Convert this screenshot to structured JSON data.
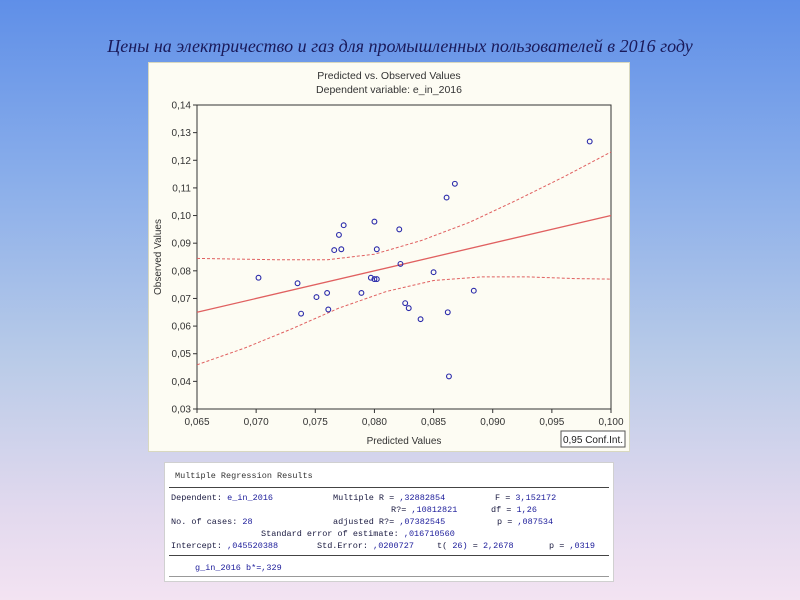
{
  "slide": {
    "title": "Цены на электричество и газ для промышленных пользователей в 2016 году"
  },
  "colors": {
    "regression_line": "#e06060",
    "points": "#2a2aaa",
    "panel_bg": "#fdfcf3"
  },
  "chart_data": {
    "type": "scatter",
    "title": "Predicted vs. Observed Values",
    "subtitle": "Dependent variable: e_in_2016",
    "xlabel": "Predicted Values",
    "ylabel": "Observed Values",
    "xlim": [
      0.065,
      0.1
    ],
    "ylim": [
      0.03,
      0.14
    ],
    "xticks": [
      "0,065",
      "0,070",
      "0,075",
      "0,080",
      "0,085",
      "0,090",
      "0,095",
      "0,100"
    ],
    "yticks": [
      "0,03",
      "0,04",
      "0,05",
      "0,06",
      "0,07",
      "0,08",
      "0,09",
      "0,10",
      "0,11",
      "0,12",
      "0,13",
      "0,14"
    ],
    "grid": false,
    "legend": "bottom-right",
    "legend_text": "0,95 Conf.Int.",
    "points": [
      {
        "x": 0.0702,
        "y": 0.0775
      },
      {
        "x": 0.0735,
        "y": 0.0755
      },
      {
        "x": 0.0738,
        "y": 0.0645
      },
      {
        "x": 0.0751,
        "y": 0.0705
      },
      {
        "x": 0.076,
        "y": 0.072
      },
      {
        "x": 0.0761,
        "y": 0.066
      },
      {
        "x": 0.0766,
        "y": 0.0875
      },
      {
        "x": 0.077,
        "y": 0.093
      },
      {
        "x": 0.0772,
        "y": 0.0878
      },
      {
        "x": 0.0774,
        "y": 0.0965
      },
      {
        "x": 0.0789,
        "y": 0.072
      },
      {
        "x": 0.0797,
        "y": 0.0775
      },
      {
        "x": 0.08,
        "y": 0.0978
      },
      {
        "x": 0.08,
        "y": 0.077
      },
      {
        "x": 0.0802,
        "y": 0.077
      },
      {
        "x": 0.0802,
        "y": 0.0878
      },
      {
        "x": 0.0821,
        "y": 0.095
      },
      {
        "x": 0.0822,
        "y": 0.0825
      },
      {
        "x": 0.0826,
        "y": 0.0683
      },
      {
        "x": 0.0829,
        "y": 0.0665
      },
      {
        "x": 0.0839,
        "y": 0.0625
      },
      {
        "x": 0.085,
        "y": 0.0795
      },
      {
        "x": 0.0861,
        "y": 0.1065
      },
      {
        "x": 0.0862,
        "y": 0.065
      },
      {
        "x": 0.0863,
        "y": 0.0418
      },
      {
        "x": 0.0868,
        "y": 0.1115
      },
      {
        "x": 0.0884,
        "y": 0.0728
      },
      {
        "x": 0.0982,
        "y": 0.1268
      }
    ],
    "regression_line": [
      {
        "x": 0.065,
        "y": 0.065
      },
      {
        "x": 0.1,
        "y": 0.1
      }
    ],
    "conf_upper": [
      {
        "x": 0.065,
        "y": 0.0845
      },
      {
        "x": 0.072,
        "y": 0.084
      },
      {
        "x": 0.076,
        "y": 0.084
      },
      {
        "x": 0.08,
        "y": 0.086
      },
      {
        "x": 0.084,
        "y": 0.091
      },
      {
        "x": 0.088,
        "y": 0.0975
      },
      {
        "x": 0.092,
        "y": 0.1055
      },
      {
        "x": 0.096,
        "y": 0.114
      },
      {
        "x": 0.1,
        "y": 0.123
      }
    ],
    "conf_lower": [
      {
        "x": 0.065,
        "y": 0.046
      },
      {
        "x": 0.069,
        "y": 0.052
      },
      {
        "x": 0.073,
        "y": 0.059
      },
      {
        "x": 0.077,
        "y": 0.0665
      },
      {
        "x": 0.081,
        "y": 0.0725
      },
      {
        "x": 0.085,
        "y": 0.0765
      },
      {
        "x": 0.089,
        "y": 0.0778
      },
      {
        "x": 0.093,
        "y": 0.0778
      },
      {
        "x": 0.097,
        "y": 0.0772
      },
      {
        "x": 0.1,
        "y": 0.077
      }
    ]
  },
  "results": {
    "heading": "Multiple Regression Results",
    "dependent_label": "Dependent:",
    "dependent_value": "e_in_2016",
    "multiple_r_label": "Multiple R =",
    "multiple_r_value": ",32882854",
    "f_label": "F =",
    "f_value": "3,152172",
    "r2_label": "R?=",
    "r2_value": ",10812821",
    "df_label": "df =",
    "df_value": "1,26",
    "cases_label": "No. of cases:",
    "cases_value": "28",
    "adj_r2_label": "adjusted R?=",
    "adj_r2_value": ",07382545",
    "p_label": "p =",
    "p_value": ",087534",
    "se_label": "Standard error of estimate:",
    "se_value": ",016710560",
    "intercept_label": "Intercept:",
    "intercept_value": ",045520388",
    "std_error_label": "Std.Error:",
    "std_error_value": ",0200727",
    "t_label": "t(",
    "t_df": "26)",
    "t_eq": "=",
    "t_value": "2,2678",
    "p2_label": "p =",
    "p2_value": ",0319",
    "footer": "g_in_2016 b*=,329"
  }
}
